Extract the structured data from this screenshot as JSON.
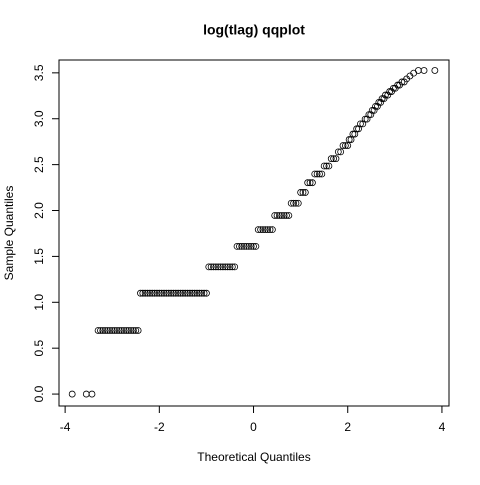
{
  "chart_data": {
    "type": "scatter",
    "title": "log(tlag) qqplot",
    "xlabel": "Theoretical Quantiles",
    "ylabel": "Sample Quantiles",
    "color": "#000000",
    "xlim": [
      -4.13,
      4.15
    ],
    "ylim": [
      -0.13,
      3.64
    ],
    "xticks": [
      -4,
      -2,
      0,
      2,
      4
    ],
    "yticks": [
      {
        "value": 0,
        "label": "0.0"
      },
      0.5,
      {
        "value": 1,
        "label": "1.0"
      },
      1.5,
      {
        "value": 2,
        "label": "2.0"
      },
      2.5,
      {
        "value": 3,
        "label": "3.0"
      },
      3.5
    ],
    "x": [
      -3.85,
      -3.55,
      -3.43,
      -3.3,
      -3.25,
      -3.2,
      -3.15,
      -3.1,
      -3.05,
      -3,
      -2.95,
      -2.9,
      -2.85,
      -2.8,
      -2.75,
      -2.7,
      -2.65,
      -2.6,
      -2.55,
      -2.5,
      -2.45,
      -2.4,
      -2.35,
      -2.3,
      -2.25,
      -2.2,
      -2.15,
      -2.1,
      -2.05,
      -2,
      -1.95,
      -1.9,
      -1.85,
      -1.8,
      -1.75,
      -1.7,
      -1.65,
      -1.6,
      -1.55,
      -1.5,
      -1.45,
      -1.4,
      -1.35,
      -1.3,
      -1.25,
      -1.2,
      -1.15,
      -1.1,
      -1.05,
      -1,
      -0.95,
      -0.9,
      -0.85,
      -0.8,
      -0.75,
      -0.7,
      -0.65,
      -0.6,
      -0.55,
      -0.5,
      -0.45,
      -0.4,
      -0.35,
      -0.3,
      -0.25,
      -0.2,
      -0.15,
      -0.1,
      -0.05,
      0,
      0.05,
      0.1,
      0.15,
      0.2,
      0.25,
      0.3,
      0.35,
      0.4,
      0.45,
      0.5,
      0.55,
      0.6,
      0.65,
      0.7,
      0.75,
      0.8,
      0.85,
      0.9,
      0.95,
      1,
      1.05,
      1.1,
      1.15,
      1.2,
      1.25,
      1.3,
      1.35,
      1.4,
      1.45,
      1.5,
      1.55,
      1.6,
      1.65,
      1.7,
      1.75,
      1.8,
      1.85,
      1.9,
      1.95,
      2,
      2.03,
      2.07,
      2.11,
      2.15,
      2.19,
      2.23,
      2.27,
      2.32,
      2.37,
      2.41,
      2.45,
      2.49,
      2.52,
      2.56,
      2.59,
      2.63,
      2.66,
      2.7,
      2.73,
      2.77,
      2.8,
      2.85,
      2.89,
      2.93,
      2.97,
      3.01,
      3.06,
      3.1,
      3.15,
      3.2,
      3.25,
      3.32,
      3.4,
      3.5,
      3.62,
      3.85
    ],
    "y": [
      0,
      0,
      0,
      0.693,
      0.693,
      0.693,
      0.693,
      0.693,
      0.693,
      0.693,
      0.693,
      0.693,
      0.693,
      0.693,
      0.693,
      0.693,
      0.693,
      0.693,
      0.693,
      0.693,
      0.693,
      1.099,
      1.099,
      1.099,
      1.099,
      1.099,
      1.099,
      1.099,
      1.099,
      1.099,
      1.099,
      1.099,
      1.099,
      1.099,
      1.099,
      1.099,
      1.099,
      1.099,
      1.099,
      1.099,
      1.099,
      1.099,
      1.099,
      1.099,
      1.099,
      1.099,
      1.099,
      1.099,
      1.099,
      1.099,
      1.386,
      1.386,
      1.386,
      1.386,
      1.386,
      1.386,
      1.386,
      1.386,
      1.386,
      1.386,
      1.386,
      1.386,
      1.609,
      1.609,
      1.609,
      1.609,
      1.609,
      1.609,
      1.609,
      1.609,
      1.609,
      1.792,
      1.792,
      1.792,
      1.792,
      1.792,
      1.792,
      1.792,
      1.946,
      1.946,
      1.946,
      1.946,
      1.946,
      1.946,
      1.946,
      2.079,
      2.079,
      2.079,
      2.079,
      2.197,
      2.197,
      2.197,
      2.303,
      2.303,
      2.303,
      2.398,
      2.398,
      2.398,
      2.398,
      2.485,
      2.485,
      2.485,
      2.565,
      2.565,
      2.565,
      2.639,
      2.639,
      2.708,
      2.708,
      2.708,
      2.773,
      2.773,
      2.833,
      2.833,
      2.89,
      2.89,
      2.944,
      2.944,
      2.996,
      2.996,
      3.045,
      3.045,
      3.091,
      3.091,
      3.135,
      3.135,
      3.178,
      3.178,
      3.219,
      3.219,
      3.258,
      3.258,
      3.296,
      3.296,
      3.332,
      3.332,
      3.367,
      3.367,
      3.401,
      3.401,
      3.434,
      3.466,
      3.497,
      3.526,
      3.526,
      3.526
    ]
  }
}
